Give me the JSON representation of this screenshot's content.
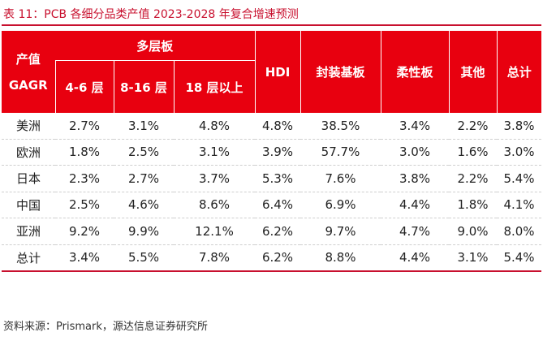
{
  "title": "表 11：PCB 各细分品类产值 2023-2028 年复合增速预测",
  "table": {
    "corner_line1": "产值",
    "corner_line2": "GAGR",
    "group_header": "多层板",
    "sub_headers": [
      "4-6 层",
      "8-16 层",
      "18 层以上"
    ],
    "other_headers": [
      "HDI",
      "封装基板",
      "柔性板",
      "其他",
      "总计"
    ],
    "rows": [
      {
        "region": "美洲",
        "values": [
          "2.7%",
          "3.1%",
          "4.8%",
          "4.8%",
          "38.5%",
          "3.4%",
          "2.2%",
          "3.8%"
        ]
      },
      {
        "region": "欧洲",
        "values": [
          "1.8%",
          "2.5%",
          "3.1%",
          "3.9%",
          "57.7%",
          "3.0%",
          "1.6%",
          "3.0%"
        ]
      },
      {
        "region": "日本",
        "values": [
          "2.3%",
          "2.7%",
          "3.7%",
          "5.3%",
          "7.6%",
          "3.8%",
          "2.2%",
          "5.4%"
        ]
      },
      {
        "region": "中国",
        "values": [
          "2.5%",
          "4.6%",
          "8.6%",
          "6.4%",
          "6.9%",
          "4.4%",
          "1.8%",
          "4.1%"
        ]
      },
      {
        "region": "亚洲",
        "values": [
          "9.2%",
          "9.9%",
          "12.1%",
          "6.2%",
          "9.7%",
          "4.7%",
          "9.0%",
          "8.0%"
        ]
      },
      {
        "region": "总计",
        "values": [
          "3.4%",
          "5.5%",
          "7.8%",
          "6.2%",
          "8.8%",
          "4.4%",
          "3.1%",
          "5.4%"
        ]
      }
    ]
  },
  "source": "资料来源：Prismark，源达信息证券研究所",
  "colors": {
    "header_bg": "#e8000f",
    "title_red": "#c8102e"
  }
}
